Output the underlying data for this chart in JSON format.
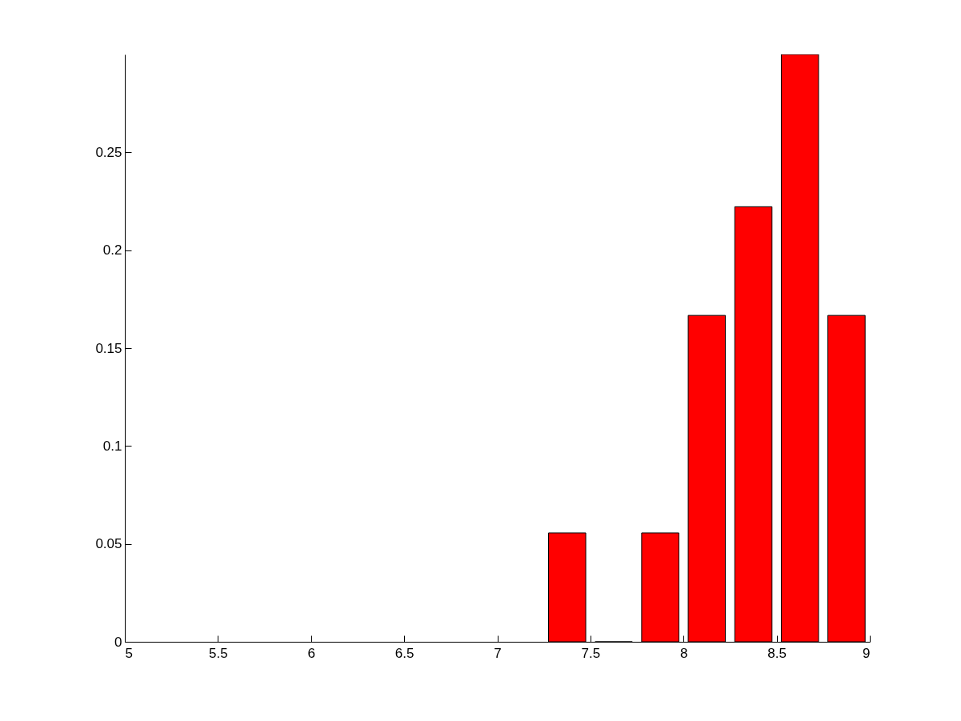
{
  "chart_data": {
    "type": "histogram",
    "bins": [
      7.25,
      7.5,
      7.75,
      8,
      8.25,
      8.5,
      8.75,
      9
    ],
    "values": [
      0.0556,
      0,
      0.0556,
      0.1667,
      0.2222,
      0.3,
      0.1667
    ],
    "color": "#ff0000",
    "xlim": [
      5,
      9
    ],
    "xticks": [
      5,
      5.5,
      6,
      6.5,
      7,
      7.5,
      8,
      8.5,
      9
    ],
    "ylim": [
      0,
      0.3
    ],
    "yticks": [
      0,
      0.05,
      0.1,
      0.15,
      0.2,
      0.25
    ],
    "grid": false,
    "legend": false
  }
}
